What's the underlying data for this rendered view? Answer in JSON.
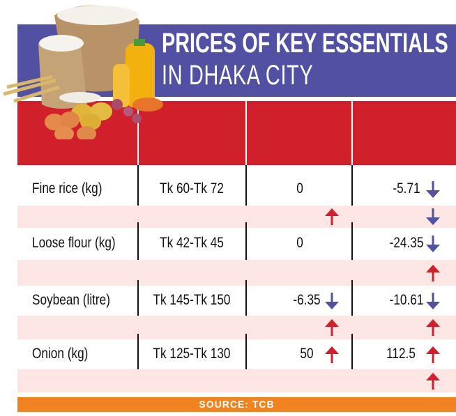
{
  "title": {
    "line1": "PRICES OF KEY ESSENTIALS",
    "line2": "IN DHAKA CITY"
  },
  "colors": {
    "title_band": "#5150a2",
    "header_band": "#d0202b",
    "alt_row": "#fde6e4",
    "source_band": "#f0831f",
    "arrow_up": "#d0202b",
    "arrow_down": "#5150a2"
  },
  "illustration": "food-essentials-illustration (rice sacks, oil bottles, wheat, eggs, potatoes, onions, lentils)",
  "chart_data": {
    "type": "table",
    "columns": [
      "",
      "",
      "",
      ""
    ],
    "rows": [
      {
        "item": "Fine rice (kg)",
        "price": "Tk 60-Tk 72",
        "change1": "0",
        "change1_arrow": "",
        "change2": "-5.71",
        "change2_arrow": "down",
        "sub_arrow1": "up",
        "sub_arrow2": "down"
      },
      {
        "item": "Loose flour (kg)",
        "price": "Tk 42-Tk 45",
        "change1": "0",
        "change1_arrow": "",
        "change2": "-24.35",
        "change2_arrow": "down",
        "sub_arrow1": "",
        "sub_arrow2": "up"
      },
      {
        "item": "Soybean (litre)",
        "price": "Tk 145-Tk 150",
        "change1": "-6.35",
        "change1_arrow": "down",
        "change2": "-10.61",
        "change2_arrow": "down",
        "sub_arrow1": "up",
        "sub_arrow2": "up"
      },
      {
        "item": "Onion (kg)",
        "price": "Tk 125-Tk 130",
        "change1": "50",
        "change1_arrow": "up",
        "change2": "112.5",
        "change2_arrow": "up",
        "sub_arrow1": "",
        "sub_arrow2": "up"
      }
    ]
  },
  "source": "SOURCE: TCB"
}
